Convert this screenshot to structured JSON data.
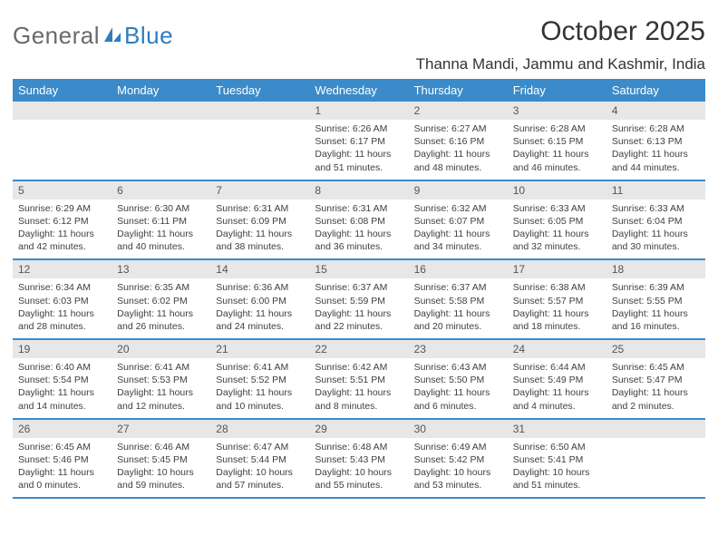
{
  "logo": {
    "part1": "General",
    "part2": "Blue"
  },
  "title": "October 2025",
  "location": "Thanna Mandi, Jammu and Kashmir, India",
  "colors": {
    "header_bg": "#3b8bca",
    "header_text": "#ffffff",
    "daynum_bg": "#e7e7e7",
    "border": "#3b8bca",
    "logo_gray": "#6a6a6a",
    "logo_blue": "#2f7cc0"
  },
  "daynames": [
    "Sunday",
    "Monday",
    "Tuesday",
    "Wednesday",
    "Thursday",
    "Friday",
    "Saturday"
  ],
  "weeks": [
    [
      {
        "n": "",
        "sr": "",
        "ss": "",
        "dl": ""
      },
      {
        "n": "",
        "sr": "",
        "ss": "",
        "dl": ""
      },
      {
        "n": "",
        "sr": "",
        "ss": "",
        "dl": ""
      },
      {
        "n": "1",
        "sr": "6:26 AM",
        "ss": "6:17 PM",
        "dl": "11 hours and 51 minutes."
      },
      {
        "n": "2",
        "sr": "6:27 AM",
        "ss": "6:16 PM",
        "dl": "11 hours and 48 minutes."
      },
      {
        "n": "3",
        "sr": "6:28 AM",
        "ss": "6:15 PM",
        "dl": "11 hours and 46 minutes."
      },
      {
        "n": "4",
        "sr": "6:28 AM",
        "ss": "6:13 PM",
        "dl": "11 hours and 44 minutes."
      }
    ],
    [
      {
        "n": "5",
        "sr": "6:29 AM",
        "ss": "6:12 PM",
        "dl": "11 hours and 42 minutes."
      },
      {
        "n": "6",
        "sr": "6:30 AM",
        "ss": "6:11 PM",
        "dl": "11 hours and 40 minutes."
      },
      {
        "n": "7",
        "sr": "6:31 AM",
        "ss": "6:09 PM",
        "dl": "11 hours and 38 minutes."
      },
      {
        "n": "8",
        "sr": "6:31 AM",
        "ss": "6:08 PM",
        "dl": "11 hours and 36 minutes."
      },
      {
        "n": "9",
        "sr": "6:32 AM",
        "ss": "6:07 PM",
        "dl": "11 hours and 34 minutes."
      },
      {
        "n": "10",
        "sr": "6:33 AM",
        "ss": "6:05 PM",
        "dl": "11 hours and 32 minutes."
      },
      {
        "n": "11",
        "sr": "6:33 AM",
        "ss": "6:04 PM",
        "dl": "11 hours and 30 minutes."
      }
    ],
    [
      {
        "n": "12",
        "sr": "6:34 AM",
        "ss": "6:03 PM",
        "dl": "11 hours and 28 minutes."
      },
      {
        "n": "13",
        "sr": "6:35 AM",
        "ss": "6:02 PM",
        "dl": "11 hours and 26 minutes."
      },
      {
        "n": "14",
        "sr": "6:36 AM",
        "ss": "6:00 PM",
        "dl": "11 hours and 24 minutes."
      },
      {
        "n": "15",
        "sr": "6:37 AM",
        "ss": "5:59 PM",
        "dl": "11 hours and 22 minutes."
      },
      {
        "n": "16",
        "sr": "6:37 AM",
        "ss": "5:58 PM",
        "dl": "11 hours and 20 minutes."
      },
      {
        "n": "17",
        "sr": "6:38 AM",
        "ss": "5:57 PM",
        "dl": "11 hours and 18 minutes."
      },
      {
        "n": "18",
        "sr": "6:39 AM",
        "ss": "5:55 PM",
        "dl": "11 hours and 16 minutes."
      }
    ],
    [
      {
        "n": "19",
        "sr": "6:40 AM",
        "ss": "5:54 PM",
        "dl": "11 hours and 14 minutes."
      },
      {
        "n": "20",
        "sr": "6:41 AM",
        "ss": "5:53 PM",
        "dl": "11 hours and 12 minutes."
      },
      {
        "n": "21",
        "sr": "6:41 AM",
        "ss": "5:52 PM",
        "dl": "11 hours and 10 minutes."
      },
      {
        "n": "22",
        "sr": "6:42 AM",
        "ss": "5:51 PM",
        "dl": "11 hours and 8 minutes."
      },
      {
        "n": "23",
        "sr": "6:43 AM",
        "ss": "5:50 PM",
        "dl": "11 hours and 6 minutes."
      },
      {
        "n": "24",
        "sr": "6:44 AM",
        "ss": "5:49 PM",
        "dl": "11 hours and 4 minutes."
      },
      {
        "n": "25",
        "sr": "6:45 AM",
        "ss": "5:47 PM",
        "dl": "11 hours and 2 minutes."
      }
    ],
    [
      {
        "n": "26",
        "sr": "6:45 AM",
        "ss": "5:46 PM",
        "dl": "11 hours and 0 minutes."
      },
      {
        "n": "27",
        "sr": "6:46 AM",
        "ss": "5:45 PM",
        "dl": "10 hours and 59 minutes."
      },
      {
        "n": "28",
        "sr": "6:47 AM",
        "ss": "5:44 PM",
        "dl": "10 hours and 57 minutes."
      },
      {
        "n": "29",
        "sr": "6:48 AM",
        "ss": "5:43 PM",
        "dl": "10 hours and 55 minutes."
      },
      {
        "n": "30",
        "sr": "6:49 AM",
        "ss": "5:42 PM",
        "dl": "10 hours and 53 minutes."
      },
      {
        "n": "31",
        "sr": "6:50 AM",
        "ss": "5:41 PM",
        "dl": "10 hours and 51 minutes."
      },
      {
        "n": "",
        "sr": "",
        "ss": "",
        "dl": ""
      }
    ]
  ],
  "labels": {
    "sunrise": "Sunrise:",
    "sunset": "Sunset:",
    "daylight": "Daylight:"
  }
}
